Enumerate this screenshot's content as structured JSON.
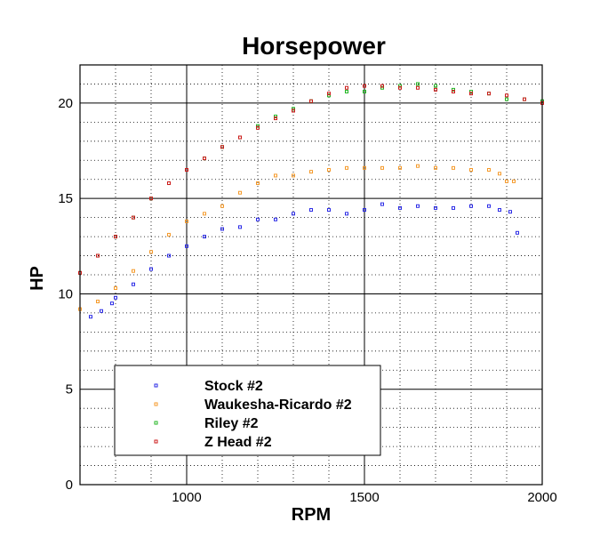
{
  "chart_data": {
    "type": "scatter",
    "title": "Horsepower",
    "xlabel": "RPM",
    "ylabel": "HP",
    "xlim": [
      700,
      2000
    ],
    "ylim": [
      0,
      22
    ],
    "xticks": [
      1000,
      1500,
      2000
    ],
    "yticks": [
      0,
      5,
      10,
      15,
      20
    ],
    "grid": true,
    "legend_position": "bottom-left",
    "series": [
      {
        "name": "Stock #2",
        "color": "#2a2ae6",
        "x": [
          730,
          760,
          790,
          800,
          850,
          900,
          950,
          1000,
          1050,
          1100,
          1150,
          1200,
          1250,
          1300,
          1350,
          1400,
          1450,
          1500,
          1550,
          1600,
          1650,
          1700,
          1750,
          1800,
          1850,
          1880,
          1910,
          1930
        ],
        "y": [
          8.8,
          9.1,
          9.5,
          9.8,
          10.5,
          11.3,
          12.0,
          12.5,
          13.0,
          13.4,
          13.5,
          13.9,
          13.9,
          14.2,
          14.4,
          14.4,
          14.2,
          14.4,
          14.7,
          14.5,
          14.6,
          14.5,
          14.5,
          14.6,
          14.6,
          14.4,
          14.3,
          13.2
        ]
      },
      {
        "name": "Waukesha-Ricardo #2",
        "color": "#f59a2a",
        "x": [
          700,
          750,
          800,
          850,
          900,
          950,
          1000,
          1050,
          1100,
          1150,
          1200,
          1250,
          1300,
          1350,
          1400,
          1450,
          1500,
          1550,
          1600,
          1650,
          1700,
          1750,
          1800,
          1850,
          1880,
          1900,
          1920
        ],
        "y": [
          9.2,
          9.6,
          10.3,
          11.2,
          12.2,
          13.1,
          13.8,
          14.2,
          14.6,
          15.3,
          15.8,
          16.2,
          16.2,
          16.4,
          16.5,
          16.6,
          16.6,
          16.6,
          16.6,
          16.7,
          16.6,
          16.6,
          16.5,
          16.5,
          16.3,
          15.9,
          15.9
        ]
      },
      {
        "name": "Riley #2",
        "color": "#22b522",
        "x": [
          700,
          750,
          800,
          850,
          900,
          950,
          1000,
          1050,
          1100,
          1150,
          1200,
          1250,
          1300,
          1350,
          1400,
          1450,
          1500,
          1550,
          1600,
          1650,
          1700,
          1750,
          1800,
          1850,
          1900,
          1950,
          2000
        ],
        "y": [
          11.1,
          12.0,
          13.0,
          14.0,
          15.0,
          15.8,
          16.5,
          17.1,
          17.7,
          18.2,
          18.8,
          19.3,
          19.7,
          20.1,
          20.4,
          20.6,
          20.6,
          20.8,
          20.9,
          21.0,
          20.9,
          20.7,
          20.6,
          20.5,
          20.2,
          20.2,
          20.1
        ]
      },
      {
        "name": "Z Head #2",
        "color": "#cc1a1a",
        "x": [
          700,
          750,
          800,
          850,
          900,
          950,
          1000,
          1050,
          1100,
          1150,
          1200,
          1250,
          1300,
          1350,
          1400,
          1450,
          1500,
          1550,
          1600,
          1650,
          1700,
          1750,
          1800,
          1850,
          1900,
          1950,
          2000
        ],
        "y": [
          11.1,
          12.0,
          13.0,
          14.0,
          15.0,
          15.8,
          16.5,
          17.1,
          17.7,
          18.2,
          18.7,
          19.2,
          19.6,
          20.1,
          20.5,
          20.8,
          20.9,
          20.9,
          20.8,
          20.8,
          20.7,
          20.6,
          20.5,
          20.5,
          20.4,
          20.2,
          20.0
        ]
      }
    ]
  }
}
